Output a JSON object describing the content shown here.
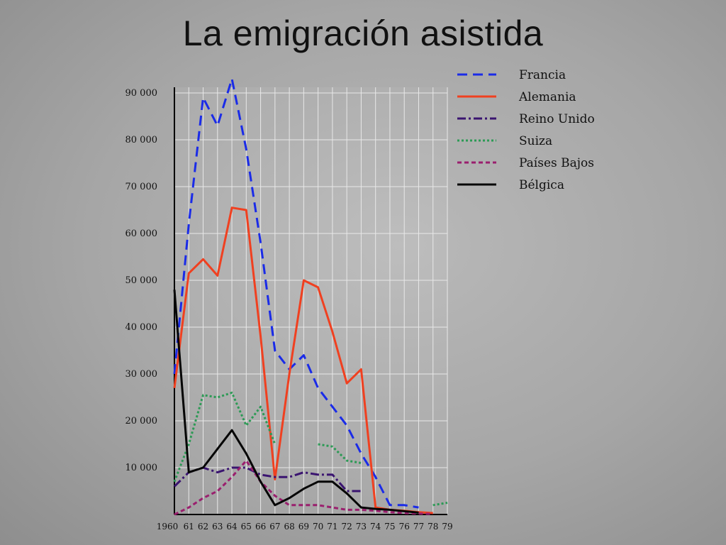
{
  "slide": {
    "title": "La emigración asistida"
  },
  "chart_data": {
    "type": "line",
    "title": "",
    "xlabel": "",
    "ylabel": "",
    "ylim": [
      0,
      95000
    ],
    "grid": true,
    "legend_position": "top-right",
    "x": [
      1960,
      1961,
      1962,
      1963,
      1964,
      1965,
      1966,
      1967,
      1968,
      1969,
      1970,
      1971,
      1972,
      1973,
      1974,
      1975,
      1976,
      1977,
      1978,
      1979
    ],
    "x_tick_labels": [
      "1960",
      "61",
      "62",
      "63",
      "64",
      "65",
      "66",
      "67",
      "68",
      "69",
      "70",
      "71",
      "72",
      "73",
      "74",
      "75",
      "76",
      "77",
      "78",
      "79"
    ],
    "y_ticks": [
      10000,
      20000,
      30000,
      40000,
      50000,
      60000,
      70000,
      80000,
      90000
    ],
    "y_tick_labels": [
      "10 000",
      "20 000",
      "30 000",
      "40 000",
      "50 000",
      "60 000",
      "70 000",
      "80 000",
      "90 000"
    ],
    "series": [
      {
        "name": "Francia",
        "color": "#1a2be8",
        "style": "dashed",
        "values": [
          30000,
          62000,
          89000,
          83000,
          93000,
          78000,
          58000,
          35000,
          31000,
          34000,
          27000,
          23000,
          19000,
          13000,
          8000,
          2000,
          2000,
          1500,
          null,
          null
        ]
      },
      {
        "name": "Alemania",
        "color": "#f04020",
        "style": "solid",
        "values": [
          27000,
          51500,
          54500,
          51000,
          65500,
          65000,
          38000,
          7500,
          30000,
          50000,
          48500,
          39000,
          28000,
          31000,
          1500,
          1000,
          800,
          500,
          300,
          null
        ]
      },
      {
        "name": "Reino Unido",
        "color": "#3a1470",
        "style": "dashdot",
        "values": [
          6000,
          9000,
          10000,
          9000,
          10000,
          10000,
          8500,
          8000,
          8000,
          9000,
          8500,
          8500,
          5000,
          5000,
          null,
          null,
          null,
          null,
          null,
          null
        ]
      },
      {
        "name": "Suiza",
        "color": "#2c9a55",
        "style": "dotted",
        "values": [
          7000,
          15000,
          25500,
          25000,
          26000,
          19000,
          23000,
          15000,
          null,
          null,
          15000,
          14500,
          11500,
          11000,
          null,
          null,
          null,
          null,
          2000,
          2500
        ]
      },
      {
        "name": "Países Bajos",
        "color": "#9a1f6e",
        "style": "shortdash",
        "values": [
          0,
          1500,
          3500,
          5000,
          8000,
          11500,
          7000,
          4000,
          2000,
          2000,
          2000,
          1500,
          1000,
          1000,
          800,
          500,
          300,
          200,
          100,
          null
        ]
      },
      {
        "name": "Bélgica",
        "color": "#050505",
        "style": "solid",
        "values": [
          48000,
          9000,
          10000,
          14000,
          18000,
          13000,
          7000,
          2000,
          3500,
          5500,
          7000,
          7000,
          4500,
          1500,
          1200,
          1000,
          700,
          400,
          null,
          null
        ]
      }
    ]
  }
}
